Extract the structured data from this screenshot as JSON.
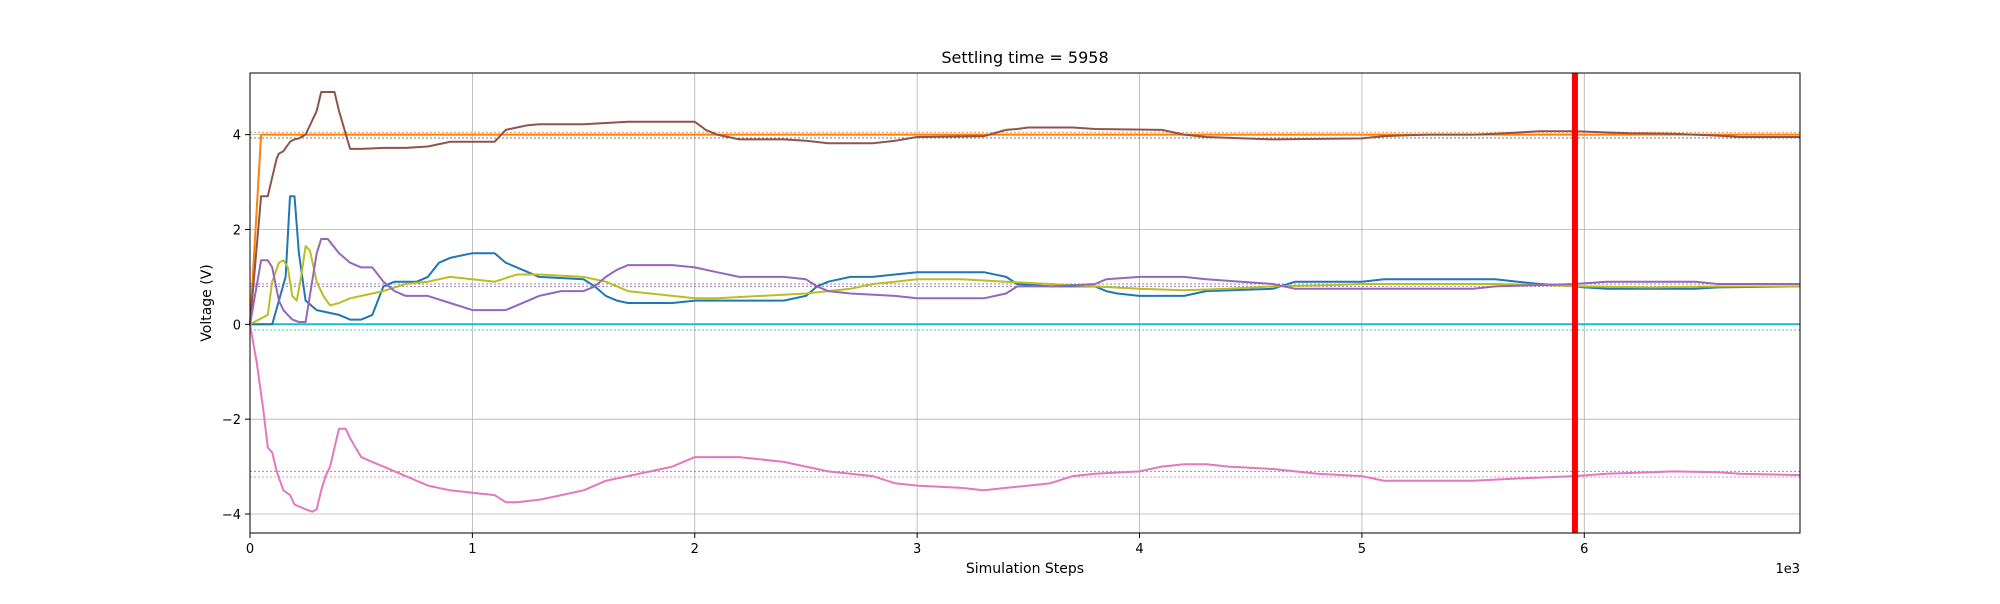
{
  "chart_data": {
    "type": "line",
    "title": "Settling time = 5958",
    "xlabel": "Simulation Steps",
    "ylabel": "Voltage (V)",
    "x_offset_label": "1e3",
    "xlim": [
      0,
      6970
    ],
    "ylim": [
      -4.4,
      5.3
    ],
    "x_ticks": [
      {
        "value": 0,
        "label": "0"
      },
      {
        "value": 1000,
        "label": "1"
      },
      {
        "value": 2000,
        "label": "2"
      },
      {
        "value": 3000,
        "label": "3"
      },
      {
        "value": 4000,
        "label": "4"
      },
      {
        "value": 5000,
        "label": "5"
      },
      {
        "value": 6000,
        "label": "6"
      }
    ],
    "y_ticks": [
      {
        "value": -4,
        "label": "−4"
      },
      {
        "value": -2,
        "label": "−2"
      },
      {
        "value": 0,
        "label": "0"
      },
      {
        "value": 2,
        "label": "2"
      },
      {
        "value": 4,
        "label": "4"
      }
    ],
    "grid": true,
    "settling_marker": {
      "x": 5958,
      "color": "#ff0000"
    },
    "reference_lines": [
      {
        "y": 4.05,
        "color": "#ff7f0e"
      },
      {
        "y": 3.93,
        "color": "#8c564b"
      },
      {
        "y": 0.85,
        "color": "#7f7f7f"
      },
      {
        "y": 0.8,
        "color": "#9467bd"
      },
      {
        "y": -0.12,
        "color": "#17becf"
      },
      {
        "y": -3.1,
        "color": "#7f7f7f"
      },
      {
        "y": -3.22,
        "color": "#e377c2"
      }
    ],
    "series": [
      {
        "color": "#ff7f0e",
        "x": [
          0,
          50,
          100,
          6970
        ],
        "y": [
          0,
          4.0,
          4.0,
          4.0
        ]
      },
      {
        "color": "#17becf",
        "x": [
          0,
          6970
        ],
        "y": [
          0,
          0
        ]
      },
      {
        "color": "#8c564b",
        "x": [
          0,
          50,
          80,
          100,
          120,
          130,
          150,
          180,
          200,
          220,
          250,
          300,
          320,
          380,
          400,
          450,
          500,
          600,
          700,
          800,
          850,
          900,
          1100,
          1150,
          1200,
          1250,
          1300,
          1500,
          1700,
          2000,
          2050,
          2100,
          2150,
          2200,
          2400,
          2500,
          2600,
          2800,
          2900,
          3000,
          3300,
          3400,
          3450,
          3500,
          3700,
          3800,
          4100,
          4200,
          4300,
          4600,
          5000,
          5100,
          5300,
          5500,
          5600,
          5800,
          5958,
          6200,
          6400,
          6600,
          6700,
          6970
        ],
        "y": [
          0,
          2.7,
          2.7,
          3.1,
          3.5,
          3.6,
          3.65,
          3.85,
          3.9,
          3.92,
          4.0,
          4.5,
          4.9,
          4.9,
          4.5,
          3.7,
          3.7,
          3.72,
          3.72,
          3.75,
          3.8,
          3.85,
          3.85,
          4.1,
          4.15,
          4.2,
          4.22,
          4.22,
          4.27,
          4.27,
          4.1,
          4.0,
          3.95,
          3.9,
          3.9,
          3.87,
          3.82,
          3.82,
          3.87,
          3.95,
          3.97,
          4.1,
          4.12,
          4.15,
          4.15,
          4.12,
          4.1,
          4.0,
          3.95,
          3.9,
          3.92,
          3.97,
          4.0,
          4.0,
          4.02,
          4.07,
          4.07,
          4.03,
          4.02,
          3.98,
          3.95,
          3.95
        ]
      },
      {
        "color": "#1f77b4",
        "x": [
          0,
          100,
          130,
          160,
          180,
          200,
          220,
          250,
          300,
          400,
          450,
          500,
          550,
          600,
          650,
          750,
          800,
          850,
          900,
          1000,
          1100,
          1150,
          1200,
          1300,
          1500,
          1550,
          1600,
          1650,
          1700,
          1900,
          2000,
          2100,
          2400,
          2500,
          2550,
          2600,
          2700,
          2800,
          2900,
          3000,
          3300,
          3400,
          3450,
          3600,
          3800,
          3850,
          3900,
          4000,
          4200,
          4300,
          4600,
          4700,
          5000,
          5100,
          5400,
          5600,
          5700,
          5800,
          5958,
          6000,
          6100,
          6500,
          6600,
          6970
        ],
        "y": [
          0,
          0,
          0.5,
          1.0,
          2.7,
          2.7,
          1.5,
          0.5,
          0.3,
          0.2,
          0.1,
          0.1,
          0.2,
          0.8,
          0.9,
          0.9,
          1.0,
          1.3,
          1.4,
          1.5,
          1.5,
          1.3,
          1.2,
          1.0,
          0.95,
          0.8,
          0.6,
          0.5,
          0.45,
          0.45,
          0.5,
          0.5,
          0.5,
          0.6,
          0.8,
          0.9,
          1.0,
          1.0,
          1.05,
          1.1,
          1.1,
          1.0,
          0.85,
          0.8,
          0.8,
          0.7,
          0.65,
          0.6,
          0.6,
          0.7,
          0.75,
          0.9,
          0.9,
          0.95,
          0.95,
          0.95,
          0.9,
          0.85,
          0.8,
          0.78,
          0.75,
          0.75,
          0.78,
          0.8
        ]
      },
      {
        "color": "#bcbd22",
        "x": [
          0,
          80,
          100,
          130,
          150,
          170,
          190,
          210,
          230,
          250,
          270,
          300,
          330,
          360,
          400,
          450,
          500,
          550,
          600,
          700,
          800,
          900,
          1000,
          1100,
          1200,
          1300,
          1500,
          1600,
          1700,
          1900,
          2000,
          2100,
          2300,
          2500,
          2700,
          2800,
          2900,
          3000,
          3200,
          3400,
          3600,
          3800,
          4000,
          4200,
          4400,
          4600,
          4800,
          5000,
          5200,
          5400,
          5600,
          5800,
          6000,
          6300,
          6600,
          6970
        ],
        "y": [
          0,
          0.2,
          0.9,
          1.3,
          1.35,
          1.2,
          0.6,
          0.5,
          1.0,
          1.65,
          1.55,
          0.9,
          0.6,
          0.4,
          0.45,
          0.55,
          0.6,
          0.65,
          0.7,
          0.85,
          0.9,
          1.0,
          0.95,
          0.9,
          1.05,
          1.05,
          1.0,
          0.9,
          0.7,
          0.6,
          0.55,
          0.55,
          0.6,
          0.65,
          0.75,
          0.85,
          0.9,
          0.95,
          0.95,
          0.9,
          0.85,
          0.8,
          0.75,
          0.72,
          0.75,
          0.8,
          0.82,
          0.85,
          0.85,
          0.85,
          0.85,
          0.83,
          0.8,
          0.78,
          0.8,
          0.8
        ]
      },
      {
        "color": "#9467bd",
        "x": [
          0,
          50,
          80,
          100,
          130,
          150,
          170,
          190,
          220,
          250,
          300,
          320,
          350,
          400,
          450,
          500,
          550,
          600,
          650,
          700,
          800,
          900,
          1000,
          1100,
          1150,
          1200,
          1300,
          1400,
          1500,
          1550,
          1600,
          1650,
          1700,
          1900,
          2000,
          2100,
          2200,
          2400,
          2500,
          2550,
          2600,
          2700,
          2900,
          3000,
          3300,
          3400,
          3450,
          3600,
          3800,
          3850,
          4000,
          4200,
          4300,
          4600,
          4700,
          5000,
          5500,
          5600,
          5958,
          6100,
          6500,
          6600,
          6970
        ],
        "y": [
          0,
          1.35,
          1.35,
          1.2,
          0.5,
          0.3,
          0.2,
          0.1,
          0.05,
          0.05,
          1.5,
          1.8,
          1.8,
          1.5,
          1.3,
          1.2,
          1.2,
          0.9,
          0.7,
          0.6,
          0.6,
          0.45,
          0.3,
          0.3,
          0.3,
          0.4,
          0.6,
          0.7,
          0.7,
          0.8,
          1.0,
          1.15,
          1.25,
          1.25,
          1.2,
          1.1,
          1.0,
          1.0,
          0.95,
          0.8,
          0.7,
          0.65,
          0.6,
          0.55,
          0.55,
          0.65,
          0.8,
          0.8,
          0.85,
          0.95,
          1.0,
          1.0,
          0.95,
          0.85,
          0.75,
          0.75,
          0.75,
          0.8,
          0.85,
          0.9,
          0.9,
          0.85,
          0.85
        ]
      },
      {
        "color": "#e377c2",
        "x": [
          0,
          30,
          60,
          80,
          100,
          120,
          150,
          180,
          200,
          250,
          280,
          300,
          320,
          340,
          360,
          380,
          400,
          430,
          450,
          500,
          550,
          600,
          700,
          800,
          900,
          1000,
          1100,
          1150,
          1200,
          1300,
          1400,
          1500,
          1600,
          1700,
          1800,
          1900,
          2000,
          2200,
          2400,
          2500,
          2600,
          2800,
          2900,
          3000,
          3200,
          3300,
          3400,
          3500,
          3600,
          3700,
          3800,
          4000,
          4100,
          4200,
          4300,
          4400,
          4600,
          4800,
          5000,
          5100,
          5300,
          5500,
          5700,
          5958,
          6100,
          6300,
          6400,
          6600,
          6700,
          6970
        ],
        "y": [
          0,
          -0.8,
          -1.8,
          -2.6,
          -2.7,
          -3.1,
          -3.5,
          -3.6,
          -3.8,
          -3.9,
          -3.95,
          -3.9,
          -3.5,
          -3.2,
          -3.0,
          -2.6,
          -2.2,
          -2.2,
          -2.4,
          -2.8,
          -2.9,
          -3.0,
          -3.2,
          -3.4,
          -3.5,
          -3.55,
          -3.6,
          -3.75,
          -3.75,
          -3.7,
          -3.6,
          -3.5,
          -3.3,
          -3.2,
          -3.1,
          -3.0,
          -2.8,
          -2.8,
          -2.9,
          -3.0,
          -3.1,
          -3.2,
          -3.35,
          -3.4,
          -3.45,
          -3.5,
          -3.45,
          -3.4,
          -3.35,
          -3.2,
          -3.15,
          -3.1,
          -3.0,
          -2.95,
          -2.95,
          -3.0,
          -3.05,
          -3.15,
          -3.2,
          -3.3,
          -3.3,
          -3.3,
          -3.25,
          -3.2,
          -3.15,
          -3.12,
          -3.1,
          -3.12,
          -3.15,
          -3.18
        ]
      }
    ]
  }
}
